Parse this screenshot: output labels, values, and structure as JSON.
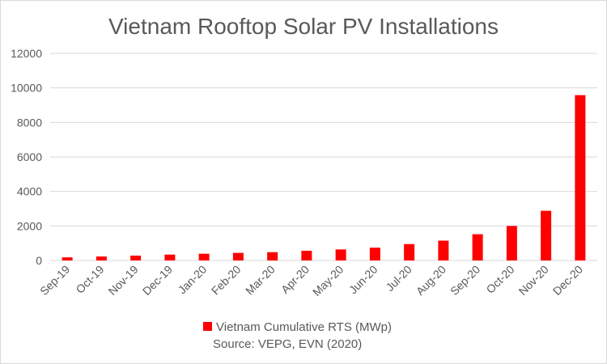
{
  "chart_data": {
    "type": "bar",
    "title": "Vietnam Rooftop Solar PV Installations",
    "xlabel": "",
    "ylabel": "",
    "categories": [
      "Sep-19",
      "Oct-19",
      "Nov-19",
      "Dec-19",
      "Jan-20",
      "Feb-20",
      "Mar-20",
      "Apr-20",
      "May-20",
      "Jun-20",
      "Jul-20",
      "Aug-20",
      "Sep-20",
      "Oct-20",
      "Nov-20",
      "Dec-20"
    ],
    "series": [
      {
        "name": "Vietnam Cumulative RTS (MWp)",
        "color": "#ff0000",
        "values": [
          180,
          230,
          280,
          340,
          390,
          440,
          480,
          560,
          640,
          740,
          950,
          1150,
          1520,
          2000,
          2880,
          9580
        ]
      }
    ],
    "ylim": [
      0,
      12000
    ],
    "yticks": [
      "0",
      "2000",
      "4000",
      "6000",
      "8000",
      "10000",
      "12000"
    ],
    "grid": true,
    "legend_position": "bottom"
  },
  "source_note": "Source: VEPG, EVN (2020)"
}
